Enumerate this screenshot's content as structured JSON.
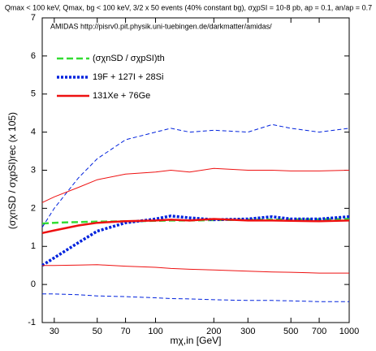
{
  "chart_data": {
    "type": "line",
    "title": "Qmax < 100 keV, Qmax, bg < 100 keV, 3/2 x 50 events (40% constant bg), σχpSI = 10-8 pb, ap = 0.1, an/ap = 0.7",
    "annotation": "AMIDAS   http://pisrv0.pit.physik.uni-tuebingen.de/darkmatter/amidas/",
    "x_label": "mχ,in [GeV]",
    "y_label": "(σχnSD / σχpSI)rec (x 105)",
    "x_log": true,
    "xlim": [
      26,
      1000
    ],
    "xticks": [
      30,
      50,
      70,
      100,
      200,
      300,
      500,
      700,
      1000
    ],
    "ylim": [
      -1,
      7
    ],
    "yticks": [
      -1,
      0,
      1,
      2,
      3,
      4,
      5,
      6,
      7
    ],
    "legend_position": "upper-left",
    "x": [
      26,
      30,
      40,
      50,
      70,
      100,
      120,
      150,
      200,
      300,
      400,
      500,
      700,
      1000
    ],
    "series": [
      {
        "name": "(σχnSD / σχpSI)th",
        "color": "#33dd33",
        "style": "dashed",
        "weight": "thick",
        "values": [
          1.6,
          1.62,
          1.64,
          1.65,
          1.66,
          1.67,
          1.68,
          1.68,
          1.69,
          1.7,
          1.7,
          1.71,
          1.71,
          1.72
        ]
      },
      {
        "name": "19F + 127I + 28Si",
        "color": "#0022dd",
        "style": "dotted",
        "weight": "thick",
        "values": [
          0.5,
          0.7,
          1.1,
          1.4,
          1.62,
          1.72,
          1.8,
          1.75,
          1.7,
          1.72,
          1.78,
          1.72,
          1.72,
          1.78
        ]
      },
      {
        "color": "#0022dd",
        "style": "dashed",
        "weight": "thin",
        "values": [
          1.5,
          2.0,
          2.8,
          3.3,
          3.8,
          4.0,
          4.1,
          4.0,
          4.05,
          4.0,
          4.2,
          4.1,
          4.0,
          4.1
        ]
      },
      {
        "color": "#0022dd",
        "style": "dashed",
        "weight": "thin",
        "values": [
          -0.25,
          -0.25,
          -0.27,
          -0.3,
          -0.32,
          -0.35,
          -0.37,
          -0.38,
          -0.4,
          -0.42,
          -0.42,
          -0.43,
          -0.45,
          -0.45
        ]
      },
      {
        "name": "131Xe + 76Ge",
        "color": "#ee1111",
        "style": "solid",
        "weight": "thick",
        "values": [
          1.35,
          1.42,
          1.55,
          1.62,
          1.66,
          1.68,
          1.7,
          1.68,
          1.72,
          1.68,
          1.68,
          1.67,
          1.66,
          1.68
        ]
      },
      {
        "color": "#ee1111",
        "style": "solid",
        "weight": "thin",
        "values": [
          2.15,
          2.3,
          2.55,
          2.75,
          2.9,
          2.95,
          3.0,
          2.95,
          3.05,
          3.0,
          3.0,
          2.98,
          2.98,
          3.0
        ]
      },
      {
        "color": "#ee1111",
        "style": "solid",
        "weight": "thin",
        "values": [
          0.5,
          0.5,
          0.51,
          0.52,
          0.48,
          0.45,
          0.42,
          0.4,
          0.38,
          0.35,
          0.33,
          0.32,
          0.3,
          0.3
        ]
      }
    ]
  }
}
